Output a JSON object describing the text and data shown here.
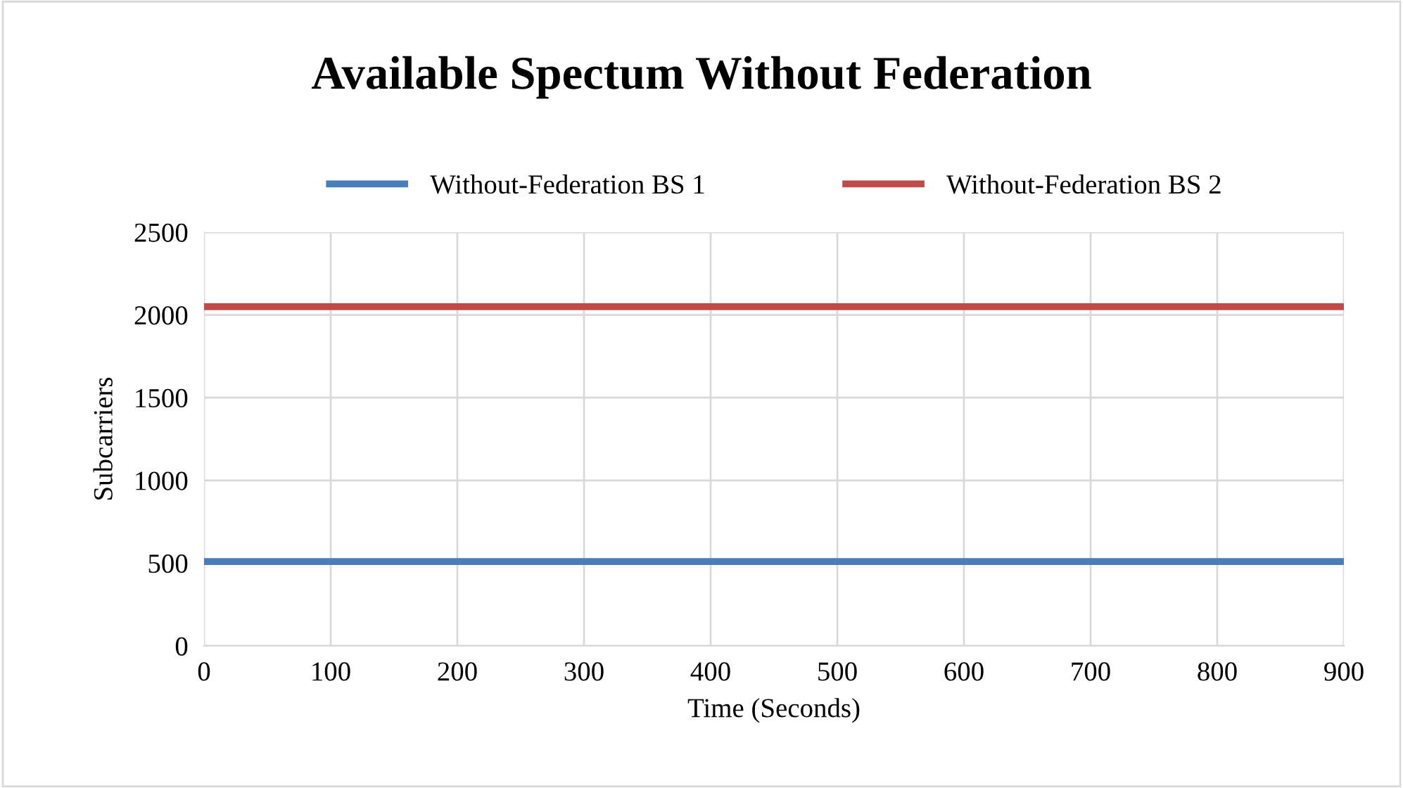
{
  "chart_data": {
    "type": "line",
    "title": "Available Spectum Without Federation",
    "xlabel": "Time (Seconds)",
    "ylabel": "Subcarriers",
    "x": [
      0,
      900
    ],
    "series": [
      {
        "name": "Without-Federation BS 1",
        "color": "#4a7ebb",
        "values": [
          510,
          510
        ]
      },
      {
        "name": "Without-Federation BS 2",
        "color": "#be4b48",
        "values": [
          2050,
          2050
        ]
      }
    ],
    "xlim": [
      0,
      900
    ],
    "xticks": [
      0,
      100,
      200,
      300,
      400,
      500,
      600,
      700,
      800,
      900
    ],
    "ylim": [
      0,
      2500
    ],
    "yticks": [
      0,
      500,
      1000,
      1500,
      2000,
      2500
    ],
    "grid": true,
    "legend": "top",
    "marker": "none",
    "line_style": "solid"
  }
}
